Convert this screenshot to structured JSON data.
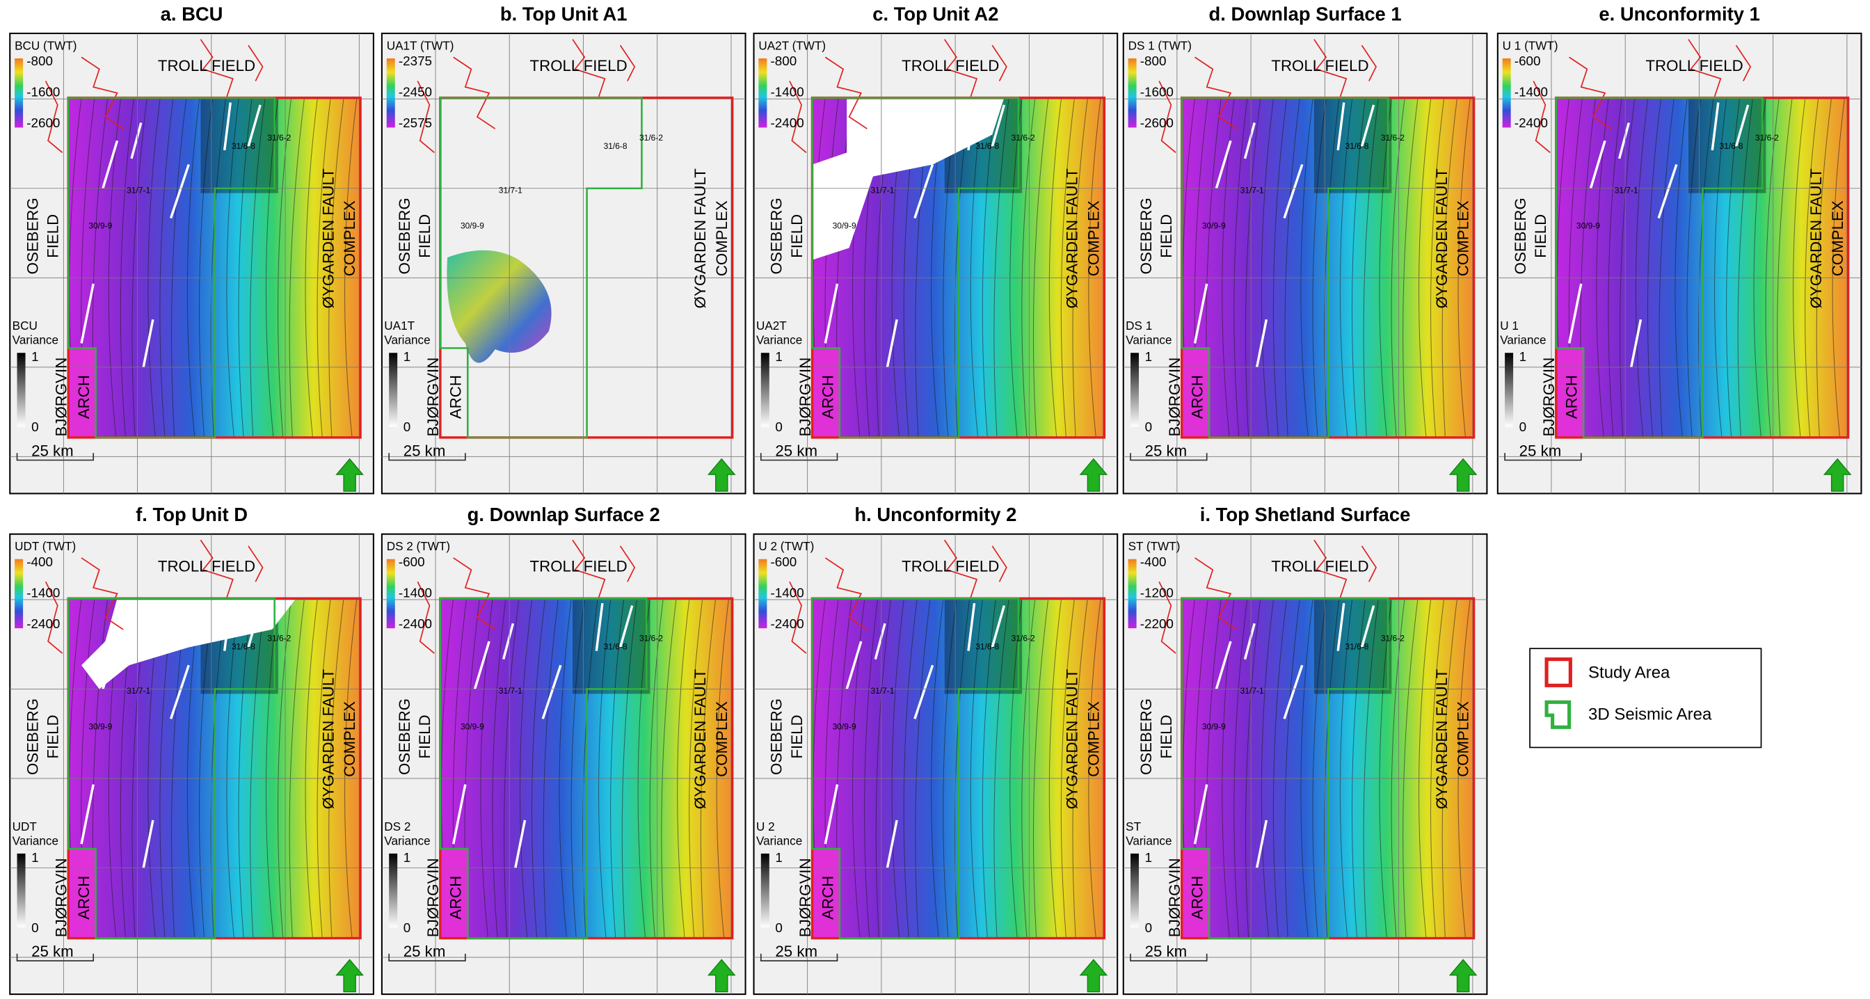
{
  "labels": {
    "troll": "TROLL FIELD",
    "oseberg": [
      "OSEBERG",
      "FIELD"
    ],
    "oygarden": [
      "ØYGARDEN FAULT",
      "COMPLEX"
    ],
    "bjorgvin": [
      "BJØRGVIN",
      "ARCH"
    ],
    "scale": "25 km",
    "variance_ticks": [
      "1",
      "0"
    ],
    "wells": [
      "31/7-1",
      "30/9-9",
      "31/6-8",
      "31/6-2"
    ]
  },
  "panels": [
    {
      "title": "a. BCU",
      "twt_label": "BCU (TWT)",
      "twt_ticks": [
        "-800",
        "-1600",
        "-2600"
      ],
      "variance_label": [
        "BCU",
        "Variance"
      ]
    },
    {
      "title": "b. Top Unit A1",
      "twt_label": "UA1T (TWT)",
      "twt_ticks": [
        "-2375",
        "-2450",
        "-2575"
      ],
      "variance_label": [
        "UA1T",
        "Variance"
      ]
    },
    {
      "title": "c. Top Unit A2",
      "twt_label": "UA2T (TWT)",
      "twt_ticks": [
        "-800",
        "-1400",
        "-2400"
      ],
      "variance_label": [
        "UA2T",
        "Variance"
      ]
    },
    {
      "title": "d. Downlap Surface 1",
      "twt_label": "DS 1 (TWT)",
      "twt_ticks": [
        "-800",
        "-1600",
        "-2600"
      ],
      "variance_label": [
        "DS 1",
        "Variance"
      ]
    },
    {
      "title": "e. Unconformity 1",
      "twt_label": "U 1 (TWT)",
      "twt_ticks": [
        "-600",
        "-1400",
        "-2400"
      ],
      "variance_label": [
        "U 1",
        "Variance"
      ]
    },
    {
      "title": "f. Top Unit D",
      "twt_label": "UDT (TWT)",
      "twt_ticks": [
        "-400",
        "-1400",
        "-2400"
      ],
      "variance_label": [
        "UDT",
        "Variance"
      ]
    },
    {
      "title": "g. Downlap Surface 2",
      "twt_label": "DS 2 (TWT)",
      "twt_ticks": [
        "-600",
        "-1400",
        "-2400"
      ],
      "variance_label": [
        "DS 2",
        "Variance"
      ]
    },
    {
      "title": "h. Unconformity 2",
      "twt_label": "U 2 (TWT)",
      "twt_ticks": [
        "-600",
        "-1400",
        "-2400"
      ],
      "variance_label": [
        "U 2",
        "Variance"
      ]
    },
    {
      "title": "i. Top Shetland Surface",
      "twt_label": "ST (TWT)",
      "twt_ticks": [
        "-400",
        "-1200",
        "-2200"
      ],
      "variance_label": [
        "ST",
        "Variance"
      ]
    }
  ],
  "legend": {
    "study_area": "Study Area",
    "seismic_area": "3D Seismic Area"
  }
}
